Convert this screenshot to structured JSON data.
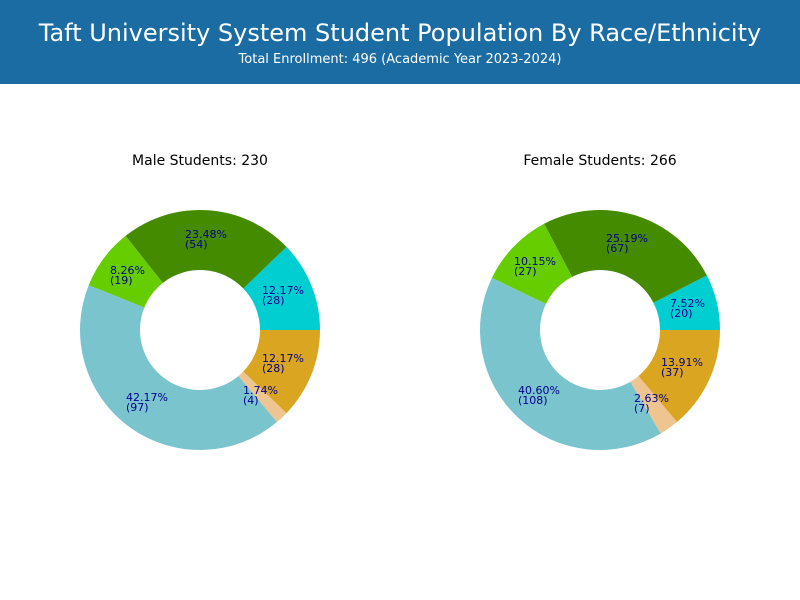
{
  "header": {
    "title": "Taft University System Student Population By Race/Ethnicity",
    "subtitle": "Total Enrollment: 496 (Academic Year 2023-2024)"
  },
  "colors": {
    "header_bg": "#1a6ca3",
    "label": "#00008b"
  },
  "chart_data": [
    {
      "type": "pie",
      "style": "donut",
      "title": "Male Students: 230",
      "start_angle_deg": 0,
      "direction": "counterclockwise",
      "slices": [
        {
          "value": 28,
          "pct": "12.17%",
          "count": "(28)",
          "color": "#00ced1"
        },
        {
          "value": 54,
          "pct": "23.48%",
          "count": "(54)",
          "color": "#458b00"
        },
        {
          "value": 19,
          "pct": "8.26%",
          "count": "(19)",
          "color": "#66cd00"
        },
        {
          "value": 97,
          "pct": "42.17%",
          "count": "(97)",
          "color": "#7ac5cd"
        },
        {
          "value": 4,
          "pct": "1.74%",
          "count": "(4)",
          "color": "#eec591"
        },
        {
          "value": 28,
          "pct": "12.17%",
          "count": "(28)",
          "color": "#daa520"
        }
      ]
    },
    {
      "type": "pie",
      "style": "donut",
      "title": "Female Students: 266",
      "start_angle_deg": 0,
      "direction": "counterclockwise",
      "slices": [
        {
          "value": 20,
          "pct": "7.52%",
          "count": "(20)",
          "color": "#00ced1"
        },
        {
          "value": 67,
          "pct": "25.19%",
          "count": "(67)",
          "color": "#458b00"
        },
        {
          "value": 27,
          "pct": "10.15%",
          "count": "(27)",
          "color": "#66cd00"
        },
        {
          "value": 108,
          "pct": "40.60%",
          "count": "(108)",
          "color": "#7ac5cd"
        },
        {
          "value": 7,
          "pct": "2.63%",
          "count": "(7)",
          "color": "#eec591"
        },
        {
          "value": 37,
          "pct": "13.91%",
          "count": "(37)",
          "color": "#daa520"
        }
      ]
    }
  ]
}
